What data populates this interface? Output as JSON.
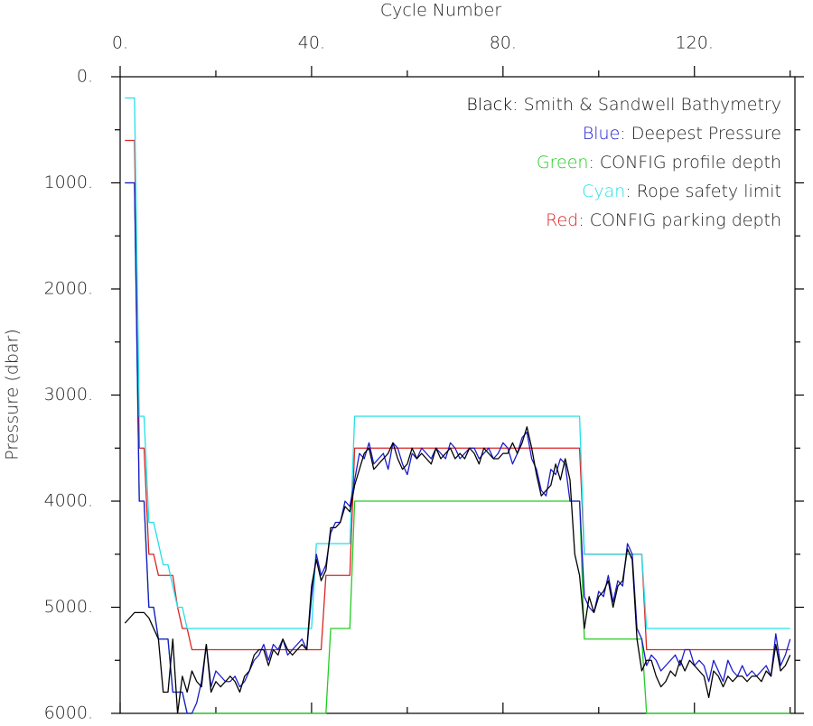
{
  "chart_data": {
    "type": "line",
    "x_label": "Cycle Number",
    "y_label": "Pressure (dbar)",
    "y_inverted": true,
    "xlim": [
      0,
      141
    ],
    "ylim": [
      0,
      6000
    ],
    "xticks": [
      {
        "value": 0,
        "label": "0."
      },
      {
        "value": 40,
        "label": "40."
      },
      {
        "value": 80,
        "label": "80."
      },
      {
        "value": 120,
        "label": "120."
      }
    ],
    "xminor_ticks": [
      20,
      60,
      100,
      140
    ],
    "yticks": [
      {
        "value": 0,
        "label": "0."
      },
      {
        "value": 1000,
        "label": "1000."
      },
      {
        "value": 2000,
        "label": "2000."
      },
      {
        "value": 3000,
        "label": "3000."
      },
      {
        "value": 4000,
        "label": "4000."
      },
      {
        "value": 5000,
        "label": "5000."
      },
      {
        "value": 6000,
        "label": "6000."
      }
    ],
    "yminor_ticks": [
      500,
      1500,
      2500,
      3500,
      4500,
      5500
    ],
    "legend_position": "upper right",
    "legend_separator": ": ",
    "x": [
      1,
      2,
      3,
      4,
      5,
      6,
      7,
      8,
      9,
      10,
      11,
      12,
      13,
      14,
      15,
      16,
      17,
      18,
      19,
      20,
      21,
      22,
      23,
      24,
      25,
      26,
      27,
      28,
      29,
      30,
      31,
      32,
      33,
      34,
      35,
      36,
      37,
      38,
      39,
      40,
      41,
      42,
      43,
      44,
      45,
      46,
      47,
      48,
      49,
      50,
      51,
      52,
      53,
      54,
      55,
      56,
      57,
      58,
      59,
      60,
      61,
      62,
      63,
      64,
      65,
      66,
      67,
      68,
      69,
      70,
      71,
      72,
      73,
      74,
      75,
      76,
      77,
      78,
      79,
      80,
      81,
      82,
      83,
      84,
      85,
      86,
      87,
      88,
      89,
      90,
      91,
      92,
      93,
      94,
      95,
      96,
      97,
      98,
      99,
      100,
      101,
      102,
      103,
      104,
      105,
      106,
      107,
      108,
      109,
      110,
      111,
      112,
      113,
      114,
      115,
      116,
      117,
      118,
      119,
      120,
      121,
      122,
      123,
      124,
      125,
      126,
      127,
      128,
      129,
      130,
      131,
      132,
      133,
      134,
      135,
      136,
      137,
      138,
      139,
      140
    ],
    "series": [
      {
        "name": "Smith & Sandwell Bathymetry",
        "legend_key": "Black",
        "color": "#000000",
        "values": [
          5150,
          5100,
          5050,
          5050,
          5050,
          5100,
          5200,
          5300,
          5800,
          5800,
          5300,
          6000,
          5650,
          5800,
          5600,
          5700,
          5750,
          5350,
          5800,
          5700,
          5750,
          5700,
          5650,
          5700,
          5800,
          5650,
          5600,
          5450,
          5400,
          5400,
          5550,
          5400,
          5450,
          5300,
          5400,
          5450,
          5400,
          5350,
          5400,
          4800,
          4550,
          4750,
          4650,
          4250,
          4250,
          4200,
          4050,
          4100,
          3850,
          3700,
          3550,
          3500,
          3700,
          3650,
          3600,
          3550,
          3450,
          3600,
          3700,
          3650,
          3500,
          3600,
          3550,
          3600,
          3650,
          3500,
          3600,
          3550,
          3500,
          3600,
          3550,
          3600,
          3500,
          3550,
          3650,
          3500,
          3550,
          3600,
          3600,
          3550,
          3550,
          3450,
          3550,
          3450,
          3300,
          3500,
          3750,
          3950,
          3900,
          3850,
          3650,
          3800,
          3600,
          3800,
          4500,
          4700,
          5200,
          4900,
          5050,
          4900,
          4850,
          4750,
          5000,
          4800,
          4750,
          4450,
          4550,
          5300,
          5600,
          5500,
          5500,
          5650,
          5750,
          5700,
          5600,
          5650,
          5500,
          5600,
          5500,
          5550,
          5600,
          5650,
          5850,
          5600,
          5650,
          5750,
          5650,
          5700,
          5650,
          5650,
          5700,
          5650,
          5650,
          5700,
          5600,
          5650,
          5350,
          5600,
          5550,
          5450
        ]
      },
      {
        "name": "Deepest Pressure",
        "legend_key": "Blue",
        "color": "#1a1acc",
        "values": [
          1000,
          1000,
          1000,
          4000,
          4000,
          5000,
          5000,
          5300,
          5300,
          5300,
          5800,
          5800,
          5800,
          6000,
          6000,
          5900,
          5700,
          5350,
          5750,
          5600,
          5650,
          5700,
          5700,
          5650,
          5750,
          5700,
          5600,
          5500,
          5450,
          5350,
          5500,
          5350,
          5400,
          5300,
          5450,
          5400,
          5350,
          5300,
          5400,
          4900,
          4500,
          4700,
          4600,
          4300,
          4200,
          4200,
          4000,
          4050,
          3800,
          3550,
          3600,
          3450,
          3650,
          3600,
          3550,
          3700,
          3450,
          3500,
          3650,
          3750,
          3550,
          3600,
          3500,
          3550,
          3600,
          3500,
          3550,
          3600,
          3450,
          3500,
          3600,
          3550,
          3500,
          3500,
          3600,
          3550,
          3500,
          3600,
          3550,
          3450,
          3500,
          3650,
          3550,
          3400,
          3350,
          3600,
          3700,
          3900,
          3950,
          3700,
          3750,
          3600,
          3650,
          4000,
          4000,
          4000,
          4900,
          5000,
          5050,
          4850,
          4900,
          4700,
          4950,
          4750,
          4800,
          4400,
          4500,
          5200,
          5300,
          5550,
          5450,
          5500,
          5600,
          5550,
          5500,
          5450,
          5550,
          5400,
          5400,
          5550,
          5500,
          5550,
          5700,
          5500,
          5600,
          5700,
          5500,
          5600,
          5650,
          5550,
          5650,
          5600,
          5650,
          5600,
          5550,
          5650,
          5250,
          5550,
          5450,
          5300
        ]
      },
      {
        "name": "CONFIG profile depth",
        "legend_key": "Green",
        "color": "#22cc22",
        "values": [
          1000,
          1000,
          1000,
          4000,
          4000,
          5000,
          5000,
          5300,
          5300,
          5300,
          5800,
          5800,
          5800,
          6000,
          6000,
          6000,
          6000,
          6000,
          6000,
          6000,
          6000,
          6000,
          6000,
          6000,
          6000,
          6000,
          6000,
          6000,
          6000,
          6000,
          6000,
          6000,
          6000,
          6000,
          6000,
          6000,
          6000,
          6000,
          6000,
          6000,
          6000,
          6000,
          6000,
          5200,
          5200,
          5200,
          5200,
          5200,
          4000,
          4000,
          4000,
          4000,
          4000,
          4000,
          4000,
          4000,
          4000,
          4000,
          4000,
          4000,
          4000,
          4000,
          4000,
          4000,
          4000,
          4000,
          4000,
          4000,
          4000,
          4000,
          4000,
          4000,
          4000,
          4000,
          4000,
          4000,
          4000,
          4000,
          4000,
          4000,
          4000,
          4000,
          4000,
          4000,
          4000,
          4000,
          4000,
          4000,
          4000,
          4000,
          4000,
          4000,
          4000,
          4000,
          4000,
          4000,
          5300,
          5300,
          5300,
          5300,
          5300,
          5300,
          5300,
          5300,
          5300,
          5300,
          5300,
          5300,
          5300,
          6000,
          6000,
          6000,
          6000,
          6000,
          6000,
          6000,
          6000,
          6000,
          6000,
          6000,
          6000,
          6000,
          6000,
          6000,
          6000,
          6000,
          6000,
          6000,
          6000,
          6000,
          6000,
          6000,
          6000,
          6000,
          6000,
          6000,
          6000,
          6000,
          6000,
          6000
        ]
      },
      {
        "name": "Rope safety limit",
        "legend_key": "Cyan",
        "color": "#22e0e8",
        "values": [
          200,
          200,
          200,
          3200,
          3200,
          4200,
          4200,
          4400,
          4600,
          4600,
          4800,
          5000,
          5000,
          5200,
          5200,
          5200,
          5200,
          5200,
          5200,
          5200,
          5200,
          5200,
          5200,
          5200,
          5200,
          5200,
          5200,
          5200,
          5200,
          5200,
          5200,
          5200,
          5200,
          5200,
          5200,
          5200,
          5200,
          5200,
          5200,
          5200,
          4400,
          4400,
          4400,
          4400,
          4400,
          4400,
          4400,
          4400,
          3200,
          3200,
          3200,
          3200,
          3200,
          3200,
          3200,
          3200,
          3200,
          3200,
          3200,
          3200,
          3200,
          3200,
          3200,
          3200,
          3200,
          3200,
          3200,
          3200,
          3200,
          3200,
          3200,
          3200,
          3200,
          3200,
          3200,
          3200,
          3200,
          3200,
          3200,
          3200,
          3200,
          3200,
          3200,
          3200,
          3200,
          3200,
          3200,
          3200,
          3200,
          3200,
          3200,
          3200,
          3200,
          3200,
          3200,
          3200,
          4500,
          4500,
          4500,
          4500,
          4500,
          4500,
          4500,
          4500,
          4500,
          4500,
          4500,
          4500,
          4500,
          5200,
          5200,
          5200,
          5200,
          5200,
          5200,
          5200,
          5200,
          5200,
          5200,
          5200,
          5200,
          5200,
          5200,
          5200,
          5200,
          5200,
          5200,
          5200,
          5200,
          5200,
          5200,
          5200,
          5200,
          5200,
          5200,
          5200,
          5200,
          5200,
          5200,
          5200
        ]
      },
      {
        "name": "CONFIG parking depth",
        "legend_key": "Red",
        "color": "#dd2222",
        "values": [
          600,
          600,
          600,
          3500,
          3500,
          4500,
          4500,
          4700,
          4700,
          4700,
          4700,
          5000,
          5200,
          5200,
          5400,
          5400,
          5400,
          5400,
          5400,
          5400,
          5400,
          5400,
          5400,
          5400,
          5400,
          5400,
          5400,
          5400,
          5400,
          5400,
          5400,
          5400,
          5400,
          5400,
          5400,
          5400,
          5400,
          5400,
          5400,
          5400,
          5400,
          5400,
          4700,
          4700,
          4700,
          4700,
          4700,
          4700,
          3500,
          3500,
          3500,
          3500,
          3500,
          3500,
          3500,
          3500,
          3500,
          3500,
          3500,
          3500,
          3500,
          3500,
          3500,
          3500,
          3500,
          3500,
          3500,
          3500,
          3500,
          3500,
          3500,
          3500,
          3500,
          3500,
          3500,
          3500,
          3500,
          3500,
          3500,
          3500,
          3500,
          3500,
          3500,
          3500,
          3500,
          3500,
          3500,
          3500,
          3500,
          3500,
          3500,
          3500,
          3500,
          3500,
          3500,
          3500,
          4500,
          4500,
          4500,
          4500,
          4500,
          4500,
          4500,
          4500,
          4500,
          4500,
          4500,
          4500,
          4500,
          5400,
          5400,
          5400,
          5400,
          5400,
          5400,
          5400,
          5400,
          5400,
          5400,
          5400,
          5400,
          5400,
          5400,
          5400,
          5400,
          5400,
          5400,
          5400,
          5400,
          5400,
          5400,
          5400,
          5400,
          5400,
          5400,
          5400,
          5400,
          5400,
          5400,
          5400
        ]
      }
    ]
  }
}
